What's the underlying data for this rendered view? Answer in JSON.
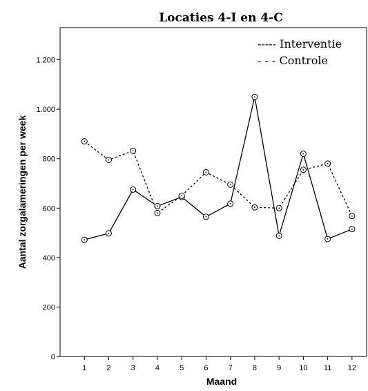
{
  "chart_data": {
    "type": "line",
    "title": "Locaties 4-I en 4-C",
    "xlabel": "Maand",
    "ylabel": "Aantal zorgalameringen per week",
    "x": [
      1,
      2,
      3,
      4,
      5,
      6,
      7,
      8,
      9,
      10,
      11,
      12
    ],
    "x_tick_labels": [
      "1",
      "2",
      "3",
      "4",
      "5",
      "6",
      "7",
      "8",
      "9",
      "10",
      "11",
      "12"
    ],
    "y_ticks": [
      0,
      200,
      400,
      600,
      800,
      1000,
      1200
    ],
    "y_tick_labels": [
      "0",
      "200",
      "400",
      "600",
      "800",
      "1.000",
      "1.200"
    ],
    "ylim": [
      0,
      1330
    ],
    "xlim": [
      0,
      12.6
    ],
    "grid": false,
    "legend_position": "top-right",
    "legend": {
      "entries": [
        "----- Interventie",
        "- - - Controle"
      ]
    },
    "series": [
      {
        "name": "Interventie",
        "style": "solid",
        "color": "#000000",
        "values": [
          472,
          498,
          675,
          608,
          645,
          565,
          618,
          1050,
          488,
          820,
          475,
          515
        ]
      },
      {
        "name": "Controle",
        "style": "dashed",
        "color": "#000000",
        "values": [
          870,
          795,
          832,
          580,
          650,
          745,
          695,
          603,
          600,
          755,
          780,
          568
        ]
      }
    ]
  }
}
